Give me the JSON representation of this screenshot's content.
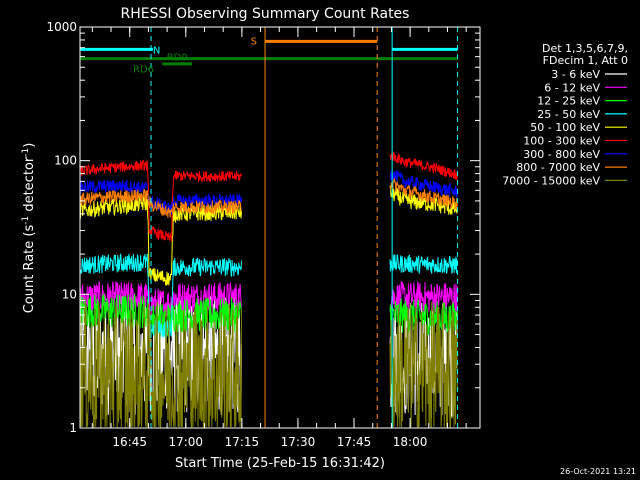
{
  "chart_data": {
    "type": "line",
    "title": "RHESSI Observing Summary Count Rates",
    "xlabel": "Start Time (25-Feb-15 16:31:42)",
    "ylabel_main": "Count Rate (s",
    "ylabel_sup1": "-1",
    "ylabel_mid": " detector",
    "ylabel_sup2": "-1",
    "ylabel_end": ")",
    "yscale": "log",
    "ylim": [
      1,
      1000
    ],
    "x_range_minutes": [
      0,
      107
    ],
    "xticks": [
      {
        "label": "16:45",
        "minute": 13.3
      },
      {
        "label": "17:00",
        "minute": 28.3
      },
      {
        "label": "17:15",
        "minute": 43.3
      },
      {
        "label": "17:30",
        "minute": 58.3
      },
      {
        "label": "17:45",
        "minute": 73.3
      },
      {
        "label": "18:00",
        "minute": 88.3
      }
    ],
    "yticks": [
      {
        "label": "1",
        "value": 1
      },
      {
        "label": "10",
        "value": 10
      },
      {
        "label": "100",
        "value": 100
      },
      {
        "label": "1000",
        "value": 1000
      }
    ],
    "legend_header": [
      "Det 1,3,5,6,7,9,",
      "FDecim 1, Att 0"
    ],
    "legend_position": "right",
    "series": [
      {
        "name": "3 - 6 keV",
        "color": "#ffffff",
        "points": [
          [
            0,
            3.5
          ],
          [
            18,
            3.5
          ],
          [
            18.5,
            3.7
          ],
          [
            24.5,
            3.7
          ],
          [
            25,
            3.5
          ],
          [
            43,
            3.5
          ],
          [
            83,
            3.5
          ],
          [
            83.5,
            3.3
          ],
          [
            101,
            3.3
          ]
        ]
      },
      {
        "name": "6 - 12 keV",
        "color": "#ff00ff",
        "points": [
          [
            0,
            9.5
          ],
          [
            18,
            9.5
          ],
          [
            18.5,
            8.5
          ],
          [
            24.5,
            8.5
          ],
          [
            25,
            9.5
          ],
          [
            43,
            9.5
          ],
          [
            83,
            9.5
          ],
          [
            83.5,
            9.5
          ],
          [
            101,
            9.5
          ]
        ]
      },
      {
        "name": "12 - 25 keV",
        "color": "#00ff00",
        "points": [
          [
            0,
            7.5
          ],
          [
            18,
            7.5
          ],
          [
            18.5,
            6.5
          ],
          [
            24.5,
            6.5
          ],
          [
            25,
            7.0
          ],
          [
            43,
            7.0
          ],
          [
            83,
            7.5
          ],
          [
            83.5,
            7.0
          ],
          [
            101,
            6.5
          ]
        ]
      },
      {
        "name": "25 - 50 keV",
        "color": "#00ffff",
        "points": [
          [
            0,
            16.5
          ],
          [
            18,
            17.5
          ],
          [
            18.5,
            5.5
          ],
          [
            24.5,
            5.5
          ],
          [
            25,
            16
          ],
          [
            43,
            16
          ],
          [
            83,
            17
          ],
          [
            83.5,
            17
          ],
          [
            101,
            16.5
          ]
        ]
      },
      {
        "name": "50 - 100 keV",
        "color": "#ffff00",
        "points": [
          [
            0,
            42
          ],
          [
            5,
            44
          ],
          [
            12,
            46
          ],
          [
            18,
            48
          ],
          [
            18.5,
            14
          ],
          [
            24.5,
            13
          ],
          [
            25,
            40
          ],
          [
            43,
            41
          ],
          [
            83,
            58
          ],
          [
            87,
            50
          ],
          [
            95,
            47
          ],
          [
            101,
            43
          ]
        ]
      },
      {
        "name": "100 - 300 keV",
        "color": "#ff0000",
        "points": [
          [
            0,
            83
          ],
          [
            5,
            87
          ],
          [
            12,
            90
          ],
          [
            18,
            92
          ],
          [
            18.5,
            30
          ],
          [
            24.5,
            26
          ],
          [
            25,
            77
          ],
          [
            43,
            76
          ],
          [
            83,
            110
          ],
          [
            87,
            98
          ],
          [
            95,
            88
          ],
          [
            101,
            78
          ]
        ]
      },
      {
        "name": "300 - 800 keV",
        "color": "#0000ff",
        "points": [
          [
            0,
            63
          ],
          [
            5,
            64
          ],
          [
            12,
            65
          ],
          [
            18,
            62
          ],
          [
            18.5,
            50
          ],
          [
            24.5,
            43
          ],
          [
            25,
            50
          ],
          [
            43,
            50
          ],
          [
            83,
            80
          ],
          [
            87,
            70
          ],
          [
            95,
            63
          ],
          [
            101,
            58
          ]
        ]
      },
      {
        "name": "800 - 7000 keV",
        "color": "#ff8000",
        "points": [
          [
            0,
            51
          ],
          [
            5,
            53
          ],
          [
            12,
            54
          ],
          [
            18,
            55
          ],
          [
            18.5,
            48
          ],
          [
            24.5,
            40
          ],
          [
            25,
            45
          ],
          [
            43,
            45
          ],
          [
            83,
            68
          ],
          [
            87,
            60
          ],
          [
            95,
            52
          ],
          [
            101,
            48
          ]
        ]
      },
      {
        "name": "7000 - 15000 keV",
        "color": "#808000",
        "points": [
          [
            0,
            2.5
          ],
          [
            18,
            2.5
          ],
          [
            18.5,
            2.5
          ],
          [
            24.5,
            2.5
          ],
          [
            25,
            2.5
          ],
          [
            43,
            2.5
          ],
          [
            83,
            2.6
          ],
          [
            83.5,
            2.5
          ],
          [
            101,
            2.5
          ]
        ]
      }
    ],
    "annotations": [
      {
        "text": "N",
        "color": "#00ffff",
        "x_minute": 20.5,
        "y_value": 680
      },
      {
        "text": "RD0",
        "color": "#008000",
        "x_minute": 26.0,
        "y_value": 600
      },
      {
        "text": "RD6",
        "color": "#008000",
        "x_minute": 17.0,
        "y_value": 490
      },
      {
        "text": "S",
        "color": "#ff8000",
        "x_minute": 46.5,
        "y_value": 790
      }
    ],
    "flag_bars": [
      {
        "color": "#00ffff",
        "y_value": 680,
        "segments": [
          [
            0,
            19.5
          ],
          [
            83.5,
            101
          ]
        ]
      },
      {
        "color": "#008000",
        "y_value": 580,
        "segments": [
          [
            0,
            101
          ]
        ]
      },
      {
        "color": "#008000",
        "y_value": 530,
        "segments": [
          [
            22,
            30
          ]
        ]
      },
      {
        "color": "#ff8000",
        "y_value": 780,
        "segments": [
          [
            49.5,
            79.5
          ]
        ]
      }
    ],
    "vlines": [
      {
        "color": "#00ffff",
        "x_minute": 0,
        "style": "solid"
      },
      {
        "color": "#00ffff",
        "x_minute": 19.0,
        "style": "dashed"
      },
      {
        "color": "#00ffff",
        "x_minute": 83.5,
        "style": "solid"
      },
      {
        "color": "#00ffff",
        "x_minute": 101,
        "style": "dashed"
      },
      {
        "color": "#ff8000",
        "x_minute": 49.5,
        "style": "solid"
      },
      {
        "color": "#ff8000",
        "x_minute": 79.5,
        "style": "dashed"
      }
    ],
    "timestamp": "26-Oct-2021 13:21"
  }
}
